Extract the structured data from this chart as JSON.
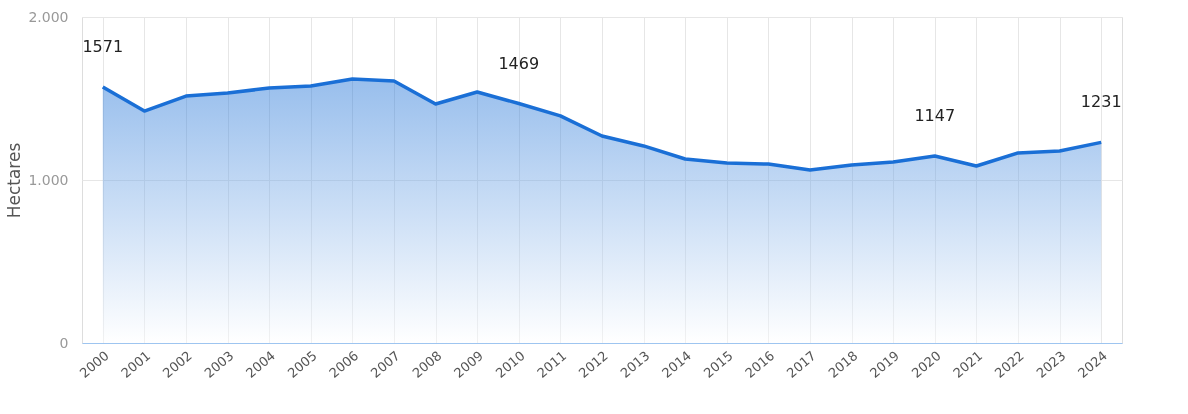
{
  "chart_data": {
    "type": "area",
    "ylabel": "Hectares",
    "categories": [
      "2000",
      "2001",
      "2002",
      "2003",
      "2004",
      "2005",
      "2006",
      "2007",
      "2008",
      "2009",
      "2010",
      "2011",
      "2012",
      "2013",
      "2014",
      "2015",
      "2016",
      "2017",
      "2018",
      "2019",
      "2020",
      "2021",
      "2022",
      "2023",
      "2024"
    ],
    "series": [
      {
        "color": "#1a6fd6",
        "values": [
          1571,
          1423,
          1515,
          1534,
          1564,
          1577,
          1620,
          1607,
          1466,
          1540,
          1469,
          1393,
          1270,
          1209,
          1129,
          1104,
          1098,
          1061,
          1092,
          1110,
          1147,
          1086,
          1166,
          1178,
          1231
        ]
      }
    ],
    "value_labels": [
      "1571",
      null,
      null,
      null,
      null,
      null,
      null,
      null,
      null,
      null,
      "1469",
      null,
      null,
      null,
      null,
      null,
      null,
      null,
      null,
      null,
      "1147",
      null,
      null,
      null,
      "1231"
    ],
    "ylim": [
      0,
      2000
    ],
    "yticks": [
      0,
      {
        "value": 1000,
        "label": "1.000"
      },
      {
        "value": 2000,
        "label": "2.000"
      }
    ],
    "grid": true,
    "marker": "none",
    "line_style": "solid"
  }
}
